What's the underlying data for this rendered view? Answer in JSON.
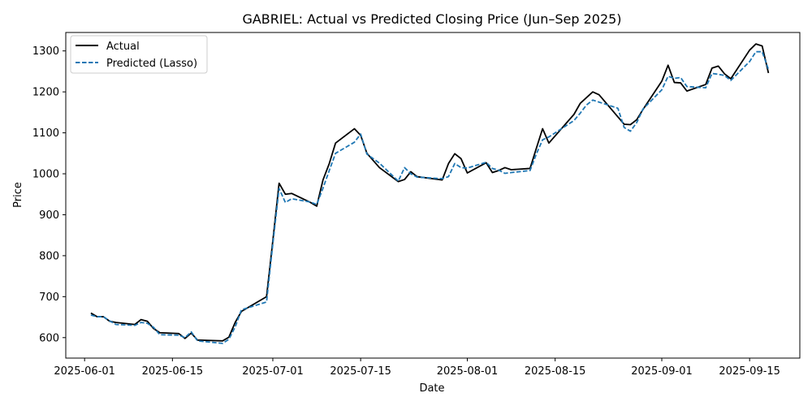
{
  "chart_data": {
    "type": "line",
    "title": "GABRIEL: Actual vs Predicted Closing Price (Jun–Sep 2025)",
    "xlabel": "Date",
    "ylabel": "Price",
    "xlim": [
      "2025-05-29",
      "2025-09-23"
    ],
    "ylim": [
      550,
      1345
    ],
    "x_ticks": [
      "2025-06-01",
      "2025-06-15",
      "2025-07-01",
      "2025-07-15",
      "2025-08-01",
      "2025-08-15",
      "2025-09-01",
      "2025-09-15"
    ],
    "y_ticks": [
      600,
      700,
      800,
      900,
      1000,
      1100,
      1200,
      1300
    ],
    "legend_position": "upper-left",
    "grid": false,
    "series": [
      {
        "name": "Actual",
        "color": "#000000",
        "style": "solid",
        "points": [
          [
            "2025-06-02",
            660
          ],
          [
            "2025-06-03",
            651
          ],
          [
            "2025-06-04",
            651
          ],
          [
            "2025-06-05",
            640
          ],
          [
            "2025-06-06",
            637
          ],
          [
            "2025-06-09",
            632
          ],
          [
            "2025-06-10",
            644
          ],
          [
            "2025-06-11",
            640
          ],
          [
            "2025-06-12",
            622
          ],
          [
            "2025-06-13",
            612
          ],
          [
            "2025-06-16",
            610
          ],
          [
            "2025-06-17",
            598
          ],
          [
            "2025-06-18",
            611
          ],
          [
            "2025-06-19",
            594
          ],
          [
            "2025-06-23",
            592
          ],
          [
            "2025-06-24",
            601
          ],
          [
            "2025-06-25",
            637
          ],
          [
            "2025-06-26",
            664
          ],
          [
            "2025-06-30",
            700
          ],
          [
            "2025-07-01",
            836
          ],
          [
            "2025-07-02",
            977
          ],
          [
            "2025-07-03",
            950
          ],
          [
            "2025-07-04",
            952
          ],
          [
            "2025-07-07",
            930
          ],
          [
            "2025-07-08",
            921
          ],
          [
            "2025-07-09",
            985
          ],
          [
            "2025-07-10",
            1025
          ],
          [
            "2025-07-11",
            1075
          ],
          [
            "2025-07-14",
            1110
          ],
          [
            "2025-07-15",
            1094
          ],
          [
            "2025-07-16",
            1050
          ],
          [
            "2025-07-18",
            1015
          ],
          [
            "2025-07-21",
            981
          ],
          [
            "2025-07-22",
            986
          ],
          [
            "2025-07-23",
            1005
          ],
          [
            "2025-07-24",
            993
          ],
          [
            "2025-07-28",
            985
          ],
          [
            "2025-07-29",
            1025
          ],
          [
            "2025-07-30",
            1049
          ],
          [
            "2025-07-31",
            1037
          ],
          [
            "2025-08-01",
            1002
          ],
          [
            "2025-08-04",
            1027
          ],
          [
            "2025-08-05",
            1003
          ],
          [
            "2025-08-06",
            1008
          ],
          [
            "2025-08-07",
            1015
          ],
          [
            "2025-08-08",
            1010
          ],
          [
            "2025-08-11",
            1013
          ],
          [
            "2025-08-12",
            1062
          ],
          [
            "2025-08-13",
            1110
          ],
          [
            "2025-08-14",
            1075
          ],
          [
            "2025-08-18",
            1145
          ],
          [
            "2025-08-19",
            1172
          ],
          [
            "2025-08-20",
            1186
          ],
          [
            "2025-08-21",
            1200
          ],
          [
            "2025-08-22",
            1193
          ],
          [
            "2025-08-25",
            1139
          ],
          [
            "2025-08-26",
            1121
          ],
          [
            "2025-08-27",
            1120
          ],
          [
            "2025-08-28",
            1132
          ],
          [
            "2025-08-29",
            1157
          ],
          [
            "2025-09-01",
            1226
          ],
          [
            "2025-09-02",
            1265
          ],
          [
            "2025-09-03",
            1223
          ],
          [
            "2025-09-04",
            1222
          ],
          [
            "2025-09-05",
            1202
          ],
          [
            "2025-09-08",
            1218
          ],
          [
            "2025-09-09",
            1258
          ],
          [
            "2025-09-10",
            1263
          ],
          [
            "2025-09-11",
            1244
          ],
          [
            "2025-09-12",
            1232
          ],
          [
            "2025-09-15",
            1302
          ],
          [
            "2025-09-16",
            1317
          ],
          [
            "2025-09-17",
            1312
          ],
          [
            "2025-09-18",
            1246
          ]
        ]
      },
      {
        "name": "Predicted (Lasso)",
        "color": "#1f77b4",
        "style": "dashed",
        "points": [
          [
            "2025-06-02",
            655
          ],
          [
            "2025-06-03",
            651
          ],
          [
            "2025-06-04",
            651
          ],
          [
            "2025-06-05",
            641
          ],
          [
            "2025-06-06",
            632
          ],
          [
            "2025-06-09",
            630
          ],
          [
            "2025-06-10",
            637
          ],
          [
            "2025-06-11",
            635
          ],
          [
            "2025-06-12",
            625
          ],
          [
            "2025-06-13",
            607
          ],
          [
            "2025-06-16",
            606
          ],
          [
            "2025-06-17",
            600
          ],
          [
            "2025-06-18",
            614
          ],
          [
            "2025-06-19",
            592
          ],
          [
            "2025-06-23",
            586
          ],
          [
            "2025-06-24",
            596
          ],
          [
            "2025-06-25",
            626
          ],
          [
            "2025-06-26",
            668
          ],
          [
            "2025-06-30",
            687
          ],
          [
            "2025-07-01",
            828
          ],
          [
            "2025-07-02",
            964
          ],
          [
            "2025-07-03",
            930
          ],
          [
            "2025-07-04",
            939
          ],
          [
            "2025-07-07",
            931
          ],
          [
            "2025-07-08",
            925
          ],
          [
            "2025-07-09",
            965
          ],
          [
            "2025-07-10",
            1008
          ],
          [
            "2025-07-11",
            1050
          ],
          [
            "2025-07-14",
            1077
          ],
          [
            "2025-07-15",
            1097
          ],
          [
            "2025-07-16",
            1048
          ],
          [
            "2025-07-18",
            1026
          ],
          [
            "2025-07-21",
            982
          ],
          [
            "2025-07-22",
            1015
          ],
          [
            "2025-07-23",
            1000
          ],
          [
            "2025-07-24",
            992
          ],
          [
            "2025-07-28",
            988
          ],
          [
            "2025-07-29",
            993
          ],
          [
            "2025-07-30",
            1025
          ],
          [
            "2025-07-31",
            1015
          ],
          [
            "2025-08-01",
            1014
          ],
          [
            "2025-08-04",
            1028
          ],
          [
            "2025-08-05",
            1013
          ],
          [
            "2025-08-06",
            1009
          ],
          [
            "2025-08-07",
            1001
          ],
          [
            "2025-08-08",
            1003
          ],
          [
            "2025-08-11",
            1008
          ],
          [
            "2025-08-12",
            1048
          ],
          [
            "2025-08-13",
            1083
          ],
          [
            "2025-08-14",
            1090
          ],
          [
            "2025-08-18",
            1130
          ],
          [
            "2025-08-19",
            1148
          ],
          [
            "2025-08-20",
            1168
          ],
          [
            "2025-08-21",
            1180
          ],
          [
            "2025-08-22",
            1175
          ],
          [
            "2025-08-25",
            1160
          ],
          [
            "2025-08-26",
            1113
          ],
          [
            "2025-08-27",
            1104
          ],
          [
            "2025-08-28",
            1125
          ],
          [
            "2025-08-29",
            1158
          ],
          [
            "2025-09-01",
            1205
          ],
          [
            "2025-09-02",
            1238
          ],
          [
            "2025-09-03",
            1233
          ],
          [
            "2025-09-04",
            1235
          ],
          [
            "2025-09-05",
            1213
          ],
          [
            "2025-09-08",
            1210
          ],
          [
            "2025-09-09",
            1245
          ],
          [
            "2025-09-10",
            1243
          ],
          [
            "2025-09-11",
            1240
          ],
          [
            "2025-09-12",
            1228
          ],
          [
            "2025-09-15",
            1274
          ],
          [
            "2025-09-16",
            1298
          ],
          [
            "2025-09-17",
            1298
          ],
          [
            "2025-09-18",
            1255
          ]
        ]
      }
    ]
  }
}
